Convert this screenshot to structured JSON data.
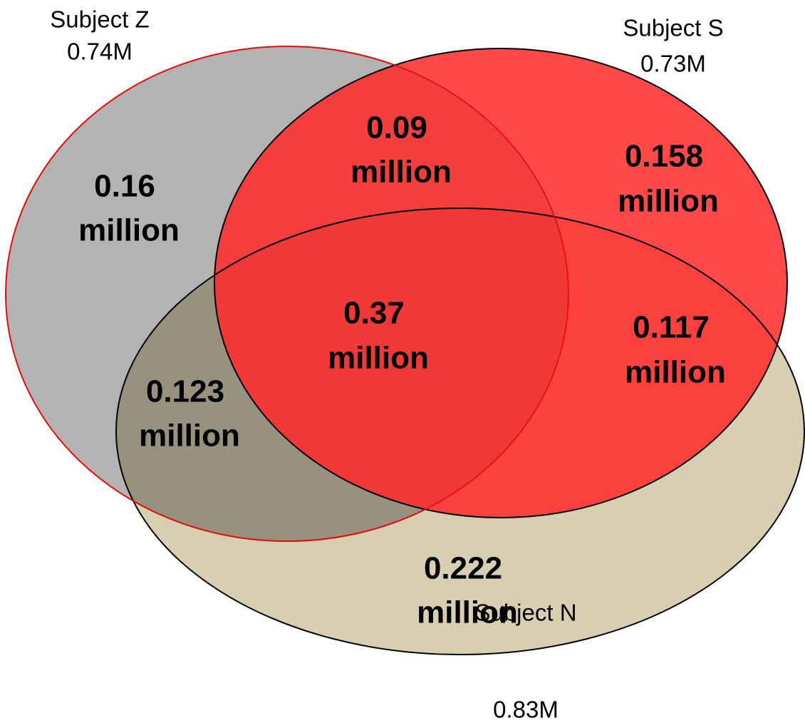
{
  "sets": [
    {
      "name": "Subject Z",
      "total": "0.74M"
    },
    {
      "name": "Subject S",
      "total": "0.73M"
    },
    {
      "name": "Subject N",
      "total": "0.83M"
    }
  ],
  "regions": [
    {
      "value": "0.16",
      "unit": "million"
    },
    {
      "value": "0.09",
      "unit": "million"
    },
    {
      "value": "0.158",
      "unit": "million"
    },
    {
      "value": "0.37",
      "unit": "million"
    },
    {
      "value": "0.117",
      "unit": "million"
    },
    {
      "value": "0.123",
      "unit": "million"
    },
    {
      "value": "0.222",
      "unit": "million"
    }
  ]
}
